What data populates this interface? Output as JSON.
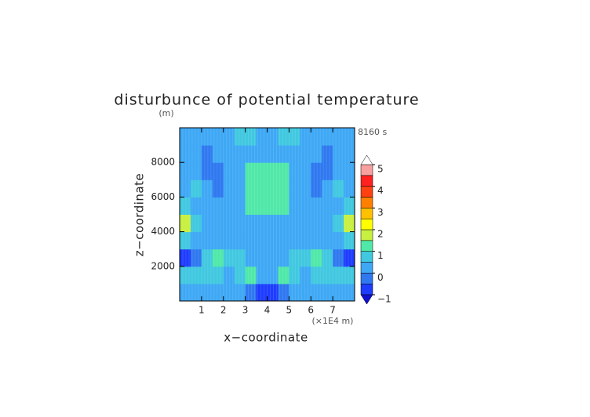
{
  "chart_data": {
    "type": "contour",
    "title": "disturbunce of potential temperature",
    "y_unit": "(m)",
    "time_label": "8160 s",
    "xlabel": "x−coordinate",
    "ylabel": "z−coordinate",
    "x_unit": "(×1E4 m)",
    "xlim": [
      0,
      8
    ],
    "xticks": [
      1,
      2,
      3,
      4,
      5,
      6,
      7
    ],
    "ylim": [
      0,
      10000
    ],
    "yticks": [
      2000,
      4000,
      6000,
      8000
    ],
    "levels": [
      -1,
      -0.5,
      0,
      0.5,
      1,
      1.5,
      2,
      2.5,
      3,
      3.5,
      4,
      4.5,
      5
    ],
    "colors": [
      "#1e3cff",
      "#2f78f0",
      "#3ea8f5",
      "#40c8e0",
      "#50e8a8",
      "#c8f040",
      "#ffff00",
      "#ffc000",
      "#ff8000",
      "#ff4010",
      "#ff2020",
      "#f8a0a0"
    ],
    "under_color": "#1010d0",
    "over_color": "#ffffff",
    "cticks": [
      {
        "value": -1,
        "label": "−1"
      },
      0,
      1,
      2,
      3,
      4,
      5
    ],
    "z": [
      [
        0.3,
        0.3,
        0.3,
        0.3,
        0.3,
        0.2,
        -0.3,
        -0.8,
        -0.8,
        -0.3,
        0.2,
        0.3,
        0.3,
        0.3,
        0.3,
        0.3
      ],
      [
        0.6,
        0.7,
        0.6,
        0.5,
        0.4,
        0.6,
        1.2,
        0.3,
        0.3,
        1.2,
        0.6,
        0.4,
        0.5,
        0.6,
        0.7,
        0.6
      ],
      [
        -0.7,
        -0.3,
        0.6,
        1.1,
        0.9,
        0.6,
        0.4,
        0.2,
        0.2,
        0.4,
        0.6,
        0.9,
        1.1,
        0.6,
        -0.3,
        -0.7
      ],
      [
        0.7,
        0.3,
        0.2,
        0.3,
        0.3,
        0.2,
        0.2,
        0.2,
        0.2,
        0.2,
        0.2,
        0.3,
        0.3,
        0.2,
        0.3,
        0.7
      ],
      [
        1.6,
        0.6,
        0.2,
        0.1,
        0.1,
        0.2,
        0.3,
        0.3,
        0.3,
        0.3,
        0.2,
        0.1,
        0.1,
        0.2,
        0.6,
        1.6
      ],
      [
        0.6,
        0.3,
        0.2,
        0.1,
        0.2,
        0.3,
        1.1,
        1.2,
        1.2,
        1.1,
        0.3,
        0.2,
        0.1,
        0.2,
        0.3,
        0.6
      ],
      [
        0.3,
        0.7,
        0.2,
        -0.1,
        0.1,
        0.3,
        1.1,
        1.2,
        1.2,
        1.1,
        0.3,
        0.1,
        -0.1,
        0.2,
        0.7,
        0.3
      ],
      [
        0.2,
        0.1,
        -0.2,
        -0.1,
        0.2,
        0.3,
        1.0,
        1.1,
        1.1,
        1.0,
        0.3,
        0.2,
        -0.1,
        -0.2,
        0.1,
        0.2
      ],
      [
        0.2,
        0.2,
        -0.2,
        0.2,
        0.3,
        0.3,
        0.3,
        0.3,
        0.3,
        0.3,
        0.3,
        0.3,
        0.2,
        -0.2,
        0.2,
        0.2
      ],
      [
        0.2,
        0.3,
        0.3,
        0.2,
        0.4,
        0.6,
        0.6,
        0.2,
        0.2,
        0.6,
        0.6,
        0.4,
        0.2,
        0.3,
        0.3,
        0.2
      ]
    ]
  }
}
